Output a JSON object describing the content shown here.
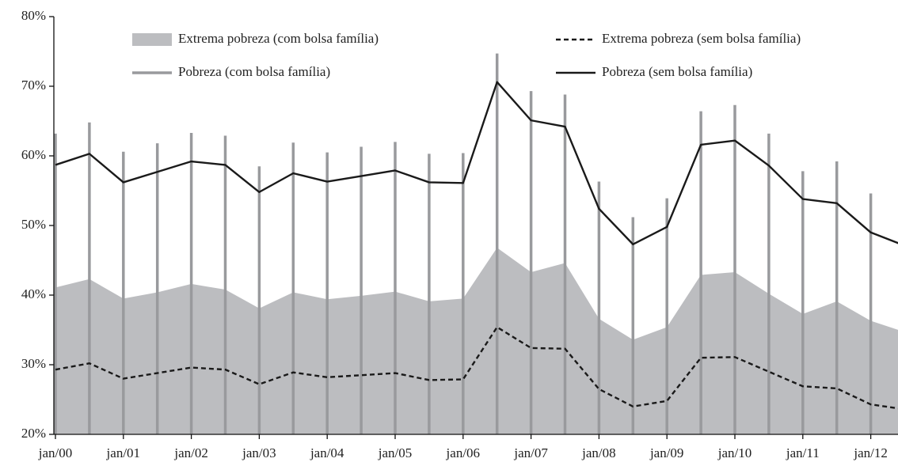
{
  "chart_data": {
    "type": "line",
    "categories": [
      "jan/00",
      null,
      "jan/01",
      null,
      "jan/02",
      null,
      "jan/03",
      null,
      "jan/04",
      null,
      "jan/05",
      null,
      "jan/06",
      null,
      "jan/07",
      null,
      "jan/08",
      null,
      "jan/09",
      null,
      "jan/10",
      null,
      "jan/11",
      null,
      "jan/12",
      null
    ],
    "ylim": [
      20,
      80
    ],
    "yticks": [
      {
        "value": 20,
        "label": "20%"
      },
      {
        "value": 30,
        "label": "30%"
      },
      {
        "value": 40,
        "label": "40%"
      },
      {
        "value": 50,
        "label": "50%"
      },
      {
        "value": 60,
        "label": "60%"
      },
      {
        "value": 70,
        "label": "70%"
      },
      {
        "value": 80,
        "label": "80%"
      }
    ],
    "series": [
      {
        "name": "Extrema pobreza (com bolsa família)",
        "style": "area",
        "color": "#bcbdc0",
        "values": [
          41.1,
          42.3,
          39.5,
          40.4,
          41.6,
          40.8,
          38.1,
          40.4,
          39.4,
          39.9,
          40.5,
          39.1,
          39.5,
          46.8,
          43.3,
          44.6,
          36.6,
          33.6,
          35.4,
          42.9,
          43.3,
          40.2,
          37.3,
          39.1,
          36.3,
          34.7
        ]
      },
      {
        "name": "Extrema pobreza (sem bolsa família)",
        "style": "dashed",
        "color": "#1a1a1a",
        "values": [
          29.3,
          30.2,
          28.0,
          28.8,
          29.6,
          29.3,
          27.2,
          28.9,
          28.2,
          28.5,
          28.8,
          27.8,
          27.9,
          35.4,
          32.4,
          32.3,
          26.5,
          24.0,
          24.8,
          31.0,
          31.1,
          29.0,
          26.9,
          26.6,
          24.3,
          23.6
        ]
      },
      {
        "name": "Pobreza (com bolsa família)",
        "style": "spike",
        "color": "#999a9d",
        "values": [
          63.2,
          64.8,
          60.6,
          61.8,
          63.3,
          62.9,
          58.5,
          61.9,
          60.5,
          61.3,
          62.0,
          60.3,
          60.4,
          74.7,
          69.3,
          68.8,
          56.3,
          51.2,
          53.9,
          66.4,
          67.3,
          63.2,
          57.8,
          59.2,
          54.6,
          null
        ]
      },
      {
        "name": "Pobreza (sem bolsa família)",
        "style": "line",
        "color": "#1a1a1a",
        "values": [
          58.7,
          60.3,
          56.2,
          57.7,
          59.2,
          58.7,
          54.8,
          57.5,
          56.3,
          57.1,
          57.9,
          56.2,
          56.1,
          70.6,
          65.1,
          64.2,
          52.4,
          47.3,
          49.8,
          61.6,
          62.2,
          58.6,
          53.8,
          53.2,
          49.0,
          47.1
        ]
      }
    ]
  }
}
